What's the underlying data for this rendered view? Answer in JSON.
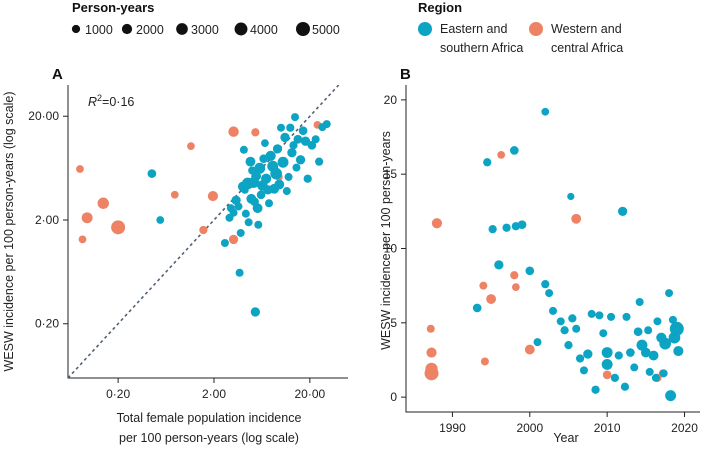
{
  "legend_size": {
    "title": "Person-years",
    "entries": [
      {
        "label": "1000",
        "value": 1000
      },
      {
        "label": "2000",
        "value": 2000
      },
      {
        "label": "3000",
        "value": 3000
      },
      {
        "label": "4000",
        "value": 4000
      },
      {
        "label": "5000",
        "value": 5000
      }
    ]
  },
  "legend_region": {
    "title": "Region",
    "entries": [
      {
        "line1": "Eastern and",
        "line2": "southern Africa",
        "color": "#0da4c4"
      },
      {
        "line1": "Western and",
        "line2": "central Africa",
        "color": "#ee8264"
      }
    ]
  },
  "chart_data": [
    {
      "panel": "A",
      "type": "scatter",
      "xlabel_line1": "Total female population incidence",
      "xlabel_line2": "per 100 person-years (log scale)",
      "ylabel": "WESW incidence per 100 person-years (log scale)",
      "x_scale": "log",
      "y_scale": "log",
      "xlim": [
        0.06,
        50
      ],
      "ylim": [
        0.06,
        40
      ],
      "x_ticks": [
        {
          "value": 0.2,
          "label": "0·20"
        },
        {
          "value": 2,
          "label": "2·00"
        },
        {
          "value": 20,
          "label": "20·00"
        }
      ],
      "y_ticks": [
        {
          "value": 0.2,
          "label": "0·20"
        },
        {
          "value": 2,
          "label": "2·00"
        },
        {
          "value": 20,
          "label": "20·00"
        }
      ],
      "annotation_symbol": "R",
      "annotation_exp": "2",
      "annotation_value": "=0·16",
      "reference_line": "y = x",
      "series": [
        {
          "name": "Western and central Africa",
          "color": "#ee8264",
          "points": [
            {
              "x": 0.08,
              "y": 6.2,
              "py": 800
            },
            {
              "x": 0.095,
              "y": 2.1,
              "py": 2500
            },
            {
              "x": 0.085,
              "y": 1.3,
              "py": 800
            },
            {
              "x": 0.14,
              "y": 2.9,
              "py": 2800
            },
            {
              "x": 0.2,
              "y": 1.7,
              "py": 5000
            },
            {
              "x": 0.78,
              "y": 3.5,
              "py": 800
            },
            {
              "x": 1.15,
              "y": 10.3,
              "py": 800
            },
            {
              "x": 1.55,
              "y": 1.6,
              "py": 1000
            },
            {
              "x": 1.95,
              "y": 3.4,
              "py": 2000
            },
            {
              "x": 3.2,
              "y": 14.2,
              "py": 2200
            },
            {
              "x": 3.2,
              "y": 1.3,
              "py": 1500
            },
            {
              "x": 5.4,
              "y": 14.0,
              "py": 1000
            },
            {
              "x": 9.5,
              "y": 5.2,
              "py": 800
            },
            {
              "x": 24.0,
              "y": 16.5,
              "py": 800
            }
          ]
        },
        {
          "name": "Eastern and southern Africa",
          "color": "#0da4c4",
          "points": [
            {
              "x": 0.45,
              "y": 5.6,
              "py": 1200
            },
            {
              "x": 0.55,
              "y": 2.0,
              "py": 800
            },
            {
              "x": 2.6,
              "y": 1.2,
              "py": 900
            },
            {
              "x": 2.9,
              "y": 2.1,
              "py": 900
            },
            {
              "x": 3.0,
              "y": 2.6,
              "py": 900
            },
            {
              "x": 3.2,
              "y": 2.35,
              "py": 900
            },
            {
              "x": 3.4,
              "y": 3.1,
              "py": 1500
            },
            {
              "x": 3.6,
              "y": 2.7,
              "py": 900
            },
            {
              "x": 3.7,
              "y": 0.62,
              "py": 900
            },
            {
              "x": 3.8,
              "y": 1.5,
              "py": 900
            },
            {
              "x": 4.0,
              "y": 4.2,
              "py": 1800
            },
            {
              "x": 4.1,
              "y": 9.5,
              "py": 900
            },
            {
              "x": 4.2,
              "y": 3.9,
              "py": 800
            },
            {
              "x": 4.3,
              "y": 2.3,
              "py": 900
            },
            {
              "x": 4.5,
              "y": 4.5,
              "py": 3000
            },
            {
              "x": 4.6,
              "y": 1.9,
              "py": 900
            },
            {
              "x": 4.8,
              "y": 7.3,
              "py": 1800
            },
            {
              "x": 4.9,
              "y": 3.2,
              "py": 1800
            },
            {
              "x": 5.0,
              "y": 6.0,
              "py": 900
            },
            {
              "x": 5.2,
              "y": 4.6,
              "py": 2500
            },
            {
              "x": 5.3,
              "y": 3.0,
              "py": 1200
            },
            {
              "x": 5.4,
              "y": 0.26,
              "py": 1500
            },
            {
              "x": 5.5,
              "y": 5.3,
              "py": 1800
            },
            {
              "x": 5.7,
              "y": 2.6,
              "py": 1800
            },
            {
              "x": 5.8,
              "y": 1.8,
              "py": 900
            },
            {
              "x": 6.0,
              "y": 6.3,
              "py": 2500
            },
            {
              "x": 6.2,
              "y": 3.5,
              "py": 1200
            },
            {
              "x": 6.4,
              "y": 4.3,
              "py": 2200
            },
            {
              "x": 6.6,
              "y": 7.8,
              "py": 1200
            },
            {
              "x": 6.8,
              "y": 11.0,
              "py": 800
            },
            {
              "x": 7.0,
              "y": 5.0,
              "py": 2000
            },
            {
              "x": 7.3,
              "y": 3.9,
              "py": 1500
            },
            {
              "x": 7.5,
              "y": 2.9,
              "py": 900
            },
            {
              "x": 7.8,
              "y": 8.3,
              "py": 2000
            },
            {
              "x": 8.2,
              "y": 6.6,
              "py": 2500
            },
            {
              "x": 8.5,
              "y": 4.0,
              "py": 1800
            },
            {
              "x": 8.9,
              "y": 5.6,
              "py": 3000
            },
            {
              "x": 9.2,
              "y": 9.7,
              "py": 1500
            },
            {
              "x": 9.6,
              "y": 4.4,
              "py": 1800
            },
            {
              "x": 10.0,
              "y": 15.5,
              "py": 900
            },
            {
              "x": 10.5,
              "y": 7.2,
              "py": 2500
            },
            {
              "x": 11.0,
              "y": 12.5,
              "py": 1500
            },
            {
              "x": 11.5,
              "y": 3.8,
              "py": 900
            },
            {
              "x": 12.0,
              "y": 5.2,
              "py": 900
            },
            {
              "x": 12.5,
              "y": 15.5,
              "py": 1000
            },
            {
              "x": 13.0,
              "y": 8.9,
              "py": 1500
            },
            {
              "x": 13.5,
              "y": 10.5,
              "py": 1000
            },
            {
              "x": 14.0,
              "y": 19.6,
              "py": 900
            },
            {
              "x": 14.5,
              "y": 6.4,
              "py": 900
            },
            {
              "x": 15.0,
              "y": 12.0,
              "py": 1200
            },
            {
              "x": 16.0,
              "y": 7.6,
              "py": 1500
            },
            {
              "x": 17.0,
              "y": 14.5,
              "py": 1200
            },
            {
              "x": 18.0,
              "y": 11.5,
              "py": 1500
            },
            {
              "x": 19.0,
              "y": 5.0,
              "py": 1000
            },
            {
              "x": 21.0,
              "y": 10.5,
              "py": 1200
            },
            {
              "x": 23.0,
              "y": 12.0,
              "py": 900
            },
            {
              "x": 25.0,
              "y": 7.3,
              "py": 1000
            },
            {
              "x": 27.0,
              "y": 15.7,
              "py": 900
            },
            {
              "x": 30.0,
              "y": 16.8,
              "py": 900
            }
          ]
        }
      ]
    },
    {
      "panel": "B",
      "type": "scatter",
      "xlabel": "Year",
      "ylabel": "WESW incidence per 100 person-years",
      "xlim": [
        1984,
        2022
      ],
      "ylim": [
        -1,
        21
      ],
      "x_ticks": [
        {
          "value": 1990,
          "label": "1990"
        },
        {
          "value": 2000,
          "label": "2000"
        },
        {
          "value": 2010,
          "label": "2010"
        },
        {
          "value": 2020,
          "label": "2020"
        }
      ],
      "y_ticks": [
        {
          "value": 0,
          "label": "0"
        },
        {
          "value": 5,
          "label": "5"
        },
        {
          "value": 10,
          "label": "10"
        },
        {
          "value": 15,
          "label": "15"
        },
        {
          "value": 20,
          "label": "20"
        }
      ],
      "series": [
        {
          "name": "Western and central Africa",
          "color": "#ee8264",
          "points": [
            {
              "x": 1987.2,
              "y": 4.6,
              "py": 900
            },
            {
              "x": 1987.3,
              "y": 3.0,
              "py": 2000
            },
            {
              "x": 1987.3,
              "y": 1.9,
              "py": 3500
            },
            {
              "x": 1987.3,
              "y": 1.6,
              "py": 5000
            },
            {
              "x": 1988.0,
              "y": 11.7,
              "py": 2000
            },
            {
              "x": 1994.0,
              "y": 7.5,
              "py": 900
            },
            {
              "x": 1994.2,
              "y": 2.4,
              "py": 900
            },
            {
              "x": 1995.0,
              "y": 6.6,
              "py": 1800
            },
            {
              "x": 1996.3,
              "y": 16.3,
              "py": 800
            },
            {
              "x": 1998.0,
              "y": 8.2,
              "py": 1000
            },
            {
              "x": 1998.2,
              "y": 7.4,
              "py": 800
            },
            {
              "x": 2000.0,
              "y": 3.2,
              "py": 1800
            },
            {
              "x": 2006.0,
              "y": 12.0,
              "py": 1800
            },
            {
              "x": 2010.0,
              "y": 1.5,
              "py": 1200
            },
            {
              "x": 2016.5,
              "y": 1.3,
              "py": 1000
            },
            {
              "x": 2017.2,
              "y": 1.6,
              "py": 900
            }
          ]
        },
        {
          "name": "Eastern and southern Africa",
          "color": "#0da4c4",
          "points": [
            {
              "x": 1993.2,
              "y": 6.0,
              "py": 1200
            },
            {
              "x": 1994.5,
              "y": 15.8,
              "py": 1000
            },
            {
              "x": 1995.2,
              "y": 11.3,
              "py": 1000
            },
            {
              "x": 1996.0,
              "y": 8.9,
              "py": 1500
            },
            {
              "x": 1997.0,
              "y": 11.4,
              "py": 1000
            },
            {
              "x": 1998.0,
              "y": 16.6,
              "py": 1200
            },
            {
              "x": 1998.2,
              "y": 11.5,
              "py": 1000
            },
            {
              "x": 1999.0,
              "y": 11.6,
              "py": 1200
            },
            {
              "x": 2000.0,
              "y": 8.5,
              "py": 1200
            },
            {
              "x": 2001.0,
              "y": 3.7,
              "py": 900
            },
            {
              "x": 2002.0,
              "y": 7.6,
              "py": 1000
            },
            {
              "x": 2002.0,
              "y": 19.2,
              "py": 800
            },
            {
              "x": 2002.5,
              "y": 7.0,
              "py": 900
            },
            {
              "x": 2003.0,
              "y": 5.8,
              "py": 900
            },
            {
              "x": 2004.0,
              "y": 5.1,
              "py": 900
            },
            {
              "x": 2004.5,
              "y": 4.5,
              "py": 1000
            },
            {
              "x": 2005.0,
              "y": 3.5,
              "py": 1000
            },
            {
              "x": 2005.3,
              "y": 13.5,
              "py": 600
            },
            {
              "x": 2005.5,
              "y": 5.3,
              "py": 1000
            },
            {
              "x": 2006.0,
              "y": 4.6,
              "py": 900
            },
            {
              "x": 2006.5,
              "y": 2.6,
              "py": 1000
            },
            {
              "x": 2007.0,
              "y": 1.8,
              "py": 900
            },
            {
              "x": 2007.5,
              "y": 2.9,
              "py": 1500
            },
            {
              "x": 2008.0,
              "y": 5.6,
              "py": 900
            },
            {
              "x": 2008.5,
              "y": 0.5,
              "py": 1000
            },
            {
              "x": 2009.0,
              "y": 5.5,
              "py": 900
            },
            {
              "x": 2009.5,
              "y": 4.3,
              "py": 900
            },
            {
              "x": 2010.0,
              "y": 2.2,
              "py": 2500
            },
            {
              "x": 2010.0,
              "y": 3.0,
              "py": 2500
            },
            {
              "x": 2010.5,
              "y": 5.4,
              "py": 900
            },
            {
              "x": 2011.0,
              "y": 1.3,
              "py": 1000
            },
            {
              "x": 2011.5,
              "y": 2.8,
              "py": 1000
            },
            {
              "x": 2012.0,
              "y": 12.5,
              "py": 1500
            },
            {
              "x": 2012.3,
              "y": 0.7,
              "py": 1000
            },
            {
              "x": 2012.5,
              "y": 5.4,
              "py": 900
            },
            {
              "x": 2013.0,
              "y": 3.0,
              "py": 1200
            },
            {
              "x": 2013.5,
              "y": 2.0,
              "py": 900
            },
            {
              "x": 2014.0,
              "y": 4.4,
              "py": 1200
            },
            {
              "x": 2014.2,
              "y": 6.4,
              "py": 900
            },
            {
              "x": 2014.5,
              "y": 3.5,
              "py": 2500
            },
            {
              "x": 2015.0,
              "y": 3.0,
              "py": 1800
            },
            {
              "x": 2015.3,
              "y": 4.5,
              "py": 900
            },
            {
              "x": 2015.5,
              "y": 1.7,
              "py": 900
            },
            {
              "x": 2016.0,
              "y": 2.8,
              "py": 1800
            },
            {
              "x": 2016.3,
              "y": 1.3,
              "py": 900
            },
            {
              "x": 2016.5,
              "y": 5.1,
              "py": 900
            },
            {
              "x": 2017.0,
              "y": 4.0,
              "py": 2000
            },
            {
              "x": 2017.3,
              "y": 1.6,
              "py": 900
            },
            {
              "x": 2017.5,
              "y": 3.6,
              "py": 3000
            },
            {
              "x": 2018.0,
              "y": 7.0,
              "py": 900
            },
            {
              "x": 2018.2,
              "y": 0.1,
              "py": 2500
            },
            {
              "x": 2018.5,
              "y": 5.2,
              "py": 900
            },
            {
              "x": 2018.7,
              "y": 4.0,
              "py": 3000
            },
            {
              "x": 2019.0,
              "y": 4.6,
              "py": 5000
            },
            {
              "x": 2019.2,
              "y": 3.1,
              "py": 2000
            }
          ]
        }
      ]
    }
  ]
}
